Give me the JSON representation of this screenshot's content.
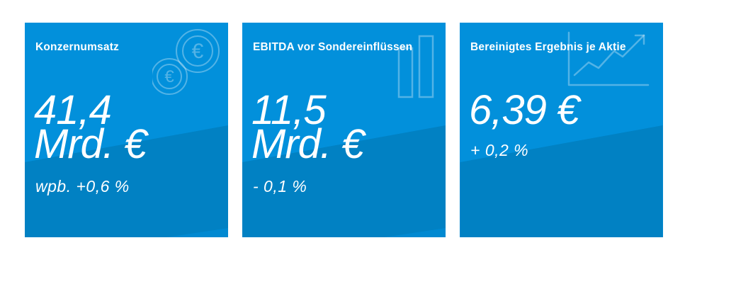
{
  "tiles": [
    {
      "title": "Konzernumsatz",
      "value_line1": "41,4",
      "value_line2": "Mrd. €",
      "change": "wpb. +0,6 %",
      "icon": "euro-coins-icon"
    },
    {
      "title": "EBITDA vor Sondereinflüssen",
      "value_line1": "11,5",
      "value_line2": "Mrd. €",
      "change": "- 0,1 %",
      "icon": "bar-chart-icon"
    },
    {
      "title": "Bereinigtes Ergebnis je Aktie",
      "value_line1": "6,39 €",
      "change": "+ 0,2 %",
      "icon": "line-chart-icon"
    }
  ],
  "colors": {
    "tile_light": "#0290db",
    "tile_dark": "#0181c3",
    "text": "#ffffff"
  }
}
